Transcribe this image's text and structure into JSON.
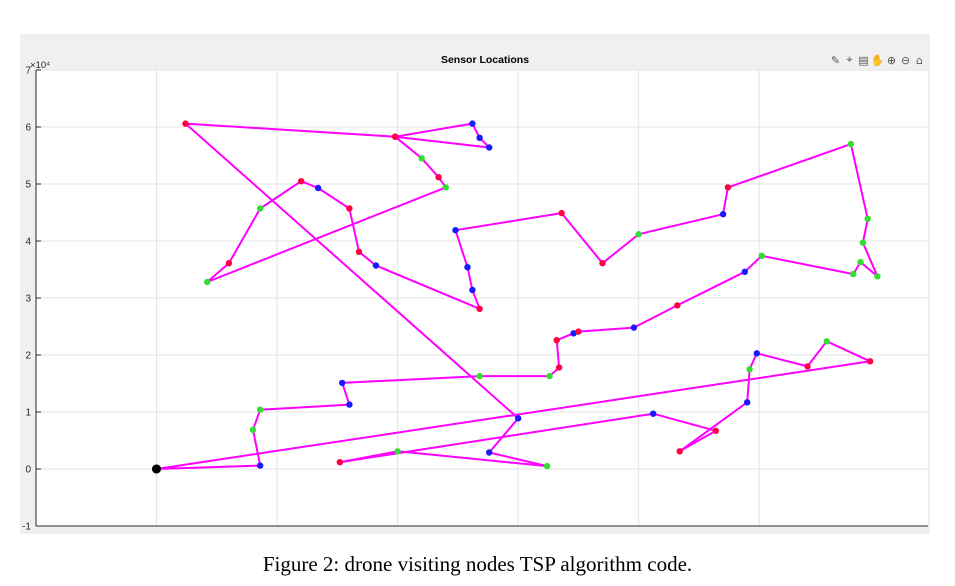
{
  "figure": {
    "caption": "Figure 2: drone visiting nodes TSP algorithm code.",
    "toolbar_icons": [
      "brush-icon",
      "data-tips-icon",
      "legend-icon",
      "pan-icon",
      "zoom-in-icon",
      "zoom-out-icon",
      "home-icon"
    ]
  },
  "chart_data": {
    "type": "line",
    "title": "Sensor Locations",
    "xlabel": "",
    "ylabel": "",
    "y_exponent_label": "×10⁴",
    "xlim": [
      -2,
      35
    ],
    "ylim": [
      -1,
      7
    ],
    "y_ticks": [
      -1,
      0,
      1,
      2,
      3,
      4,
      5,
      6,
      7
    ],
    "x_gridlines": [
      3,
      8,
      13,
      18,
      23,
      28
    ],
    "grid": true,
    "line_color": "#ff00ff",
    "colors": {
      "red": "#ff0044",
      "blue": "#1a1aff",
      "green": "#33dd33",
      "black": "#000000"
    },
    "route": [
      {
        "x": 3.0,
        "y": 0.0,
        "c": "black"
      },
      {
        "x": 7.3,
        "y": 0.06,
        "c": "blue"
      },
      {
        "x": 7.0,
        "y": 0.69,
        "c": "green"
      },
      {
        "x": 7.3,
        "y": 1.04,
        "c": "green"
      },
      {
        "x": 11.0,
        "y": 1.13,
        "c": "blue"
      },
      {
        "x": 10.7,
        "y": 1.51,
        "c": "blue"
      },
      {
        "x": 16.4,
        "y": 1.63,
        "c": "green"
      },
      {
        "x": 19.3,
        "y": 1.63,
        "c": "green"
      },
      {
        "x": 19.7,
        "y": 1.78,
        "c": "red"
      },
      {
        "x": 19.6,
        "y": 2.26,
        "c": "red"
      },
      {
        "x": 20.3,
        "y": 2.38,
        "c": "blue"
      },
      {
        "x": 20.5,
        "y": 2.41,
        "c": "red"
      },
      {
        "x": 22.8,
        "y": 2.48,
        "c": "blue"
      },
      {
        "x": 24.6,
        "y": 2.87,
        "c": "red"
      },
      {
        "x": 27.4,
        "y": 3.46,
        "c": "blue"
      },
      {
        "x": 28.1,
        "y": 3.74,
        "c": "green"
      },
      {
        "x": 31.9,
        "y": 3.42,
        "c": "green"
      },
      {
        "x": 32.2,
        "y": 3.63,
        "c": "green"
      },
      {
        "x": 32.9,
        "y": 3.38,
        "c": "green"
      },
      {
        "x": 32.3,
        "y": 3.97,
        "c": "green"
      },
      {
        "x": 32.5,
        "y": 4.39,
        "c": "green"
      },
      {
        "x": 31.8,
        "y": 5.7,
        "c": "green"
      },
      {
        "x": 26.7,
        "y": 4.94,
        "c": "red"
      },
      {
        "x": 26.5,
        "y": 4.47,
        "c": "blue"
      },
      {
        "x": 23.0,
        "y": 4.12,
        "c": "green"
      },
      {
        "x": 21.5,
        "y": 3.61,
        "c": "red"
      },
      {
        "x": 19.8,
        "y": 4.49,
        "c": "red"
      },
      {
        "x": 15.4,
        "y": 4.19,
        "c": "blue"
      },
      {
        "x": 15.9,
        "y": 3.54,
        "c": "blue"
      },
      {
        "x": 16.1,
        "y": 3.14,
        "c": "blue"
      },
      {
        "x": 16.4,
        "y": 2.81,
        "c": "red"
      },
      {
        "x": 12.1,
        "y": 3.57,
        "c": "blue"
      },
      {
        "x": 11.4,
        "y": 3.81,
        "c": "red"
      },
      {
        "x": 11.0,
        "y": 4.57,
        "c": "red"
      },
      {
        "x": 9.7,
        "y": 4.93,
        "c": "blue"
      },
      {
        "x": 9.0,
        "y": 5.05,
        "c": "red"
      },
      {
        "x": 7.3,
        "y": 4.57,
        "c": "green"
      },
      {
        "x": 6.0,
        "y": 3.61,
        "c": "red"
      },
      {
        "x": 5.1,
        "y": 3.28,
        "c": "green"
      },
      {
        "x": 15.0,
        "y": 4.94,
        "c": "green"
      },
      {
        "x": 14.7,
        "y": 5.12,
        "c": "red"
      },
      {
        "x": 14.0,
        "y": 5.45,
        "c": "green"
      },
      {
        "x": 12.9,
        "y": 5.83,
        "c": "red"
      },
      {
        "x": 16.8,
        "y": 5.64,
        "c": "blue"
      },
      {
        "x": 16.4,
        "y": 5.81,
        "c": "blue"
      },
      {
        "x": 16.1,
        "y": 6.06,
        "c": "blue"
      },
      {
        "x": 12.9,
        "y": 5.83,
        "c": "red"
      },
      {
        "x": 4.2,
        "y": 6.06,
        "c": "red"
      },
      {
        "x": 18.0,
        "y": 0.89,
        "c": "blue"
      },
      {
        "x": 16.8,
        "y": 0.29,
        "c": "blue"
      },
      {
        "x": 19.2,
        "y": 0.05,
        "c": "green"
      },
      {
        "x": 13.0,
        "y": 0.31,
        "c": "green"
      },
      {
        "x": 10.6,
        "y": 0.12,
        "c": "red"
      },
      {
        "x": 23.6,
        "y": 0.97,
        "c": "blue"
      },
      {
        "x": 26.2,
        "y": 0.67,
        "c": "red"
      },
      {
        "x": 24.7,
        "y": 0.31,
        "c": "red"
      },
      {
        "x": 27.5,
        "y": 1.17,
        "c": "blue"
      },
      {
        "x": 27.6,
        "y": 1.75,
        "c": "green"
      },
      {
        "x": 27.9,
        "y": 2.03,
        "c": "blue"
      },
      {
        "x": 30.0,
        "y": 1.8,
        "c": "red"
      },
      {
        "x": 30.8,
        "y": 2.24,
        "c": "green"
      },
      {
        "x": 32.6,
        "y": 1.89,
        "c": "red"
      },
      {
        "x": 3.0,
        "y": 0.0,
        "c": "black"
      }
    ]
  }
}
